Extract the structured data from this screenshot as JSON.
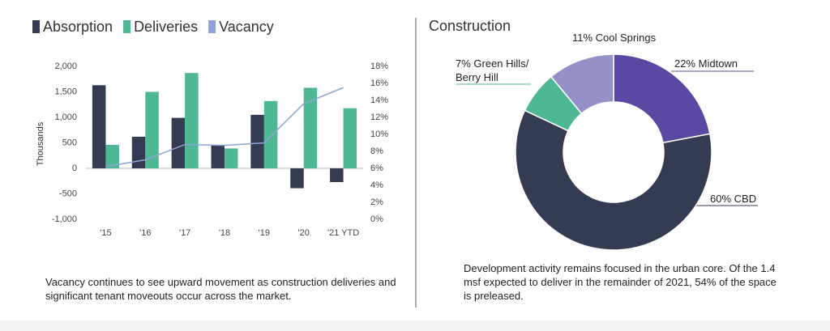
{
  "chart_data": [
    {
      "type": "bar-line",
      "categories": [
        "'15",
        "'16",
        "'17",
        "'18",
        "'19",
        "'20",
        "'21 YTD"
      ],
      "series": [
        {
          "name": "Absorption",
          "color": "#333c52",
          "values": [
            1630,
            620,
            990,
            460,
            1050,
            -390,
            -270
          ]
        },
        {
          "name": "Deliveries",
          "color": "#4db893",
          "values": [
            460,
            1500,
            1870,
            390,
            1320,
            1580,
            1180
          ]
        },
        {
          "name": "Vacancy",
          "color": "#8ea3d6",
          "axis": "y2",
          "values": [
            6.2,
            7.0,
            8.8,
            8.7,
            9.0,
            13.6,
            15.5
          ]
        }
      ],
      "ylabel": "Thousands",
      "ylim": [
        -1000,
        2000
      ],
      "yticks": [
        {
          "value": -1000,
          "label": "-1,000"
        },
        -500,
        0,
        500,
        {
          "value": 1000,
          "label": "1,000"
        },
        {
          "value": 1500,
          "label": "1,500"
        },
        {
          "value": 2000,
          "label": "2,000"
        }
      ],
      "y2lim": [
        0,
        18
      ],
      "y2ticks": [
        {
          "value": 0,
          "label": "0%"
        },
        {
          "value": 2,
          "label": "2%"
        },
        {
          "value": 4,
          "label": "4%"
        },
        {
          "value": 6,
          "label": "6%"
        },
        {
          "value": 8,
          "label": "8%"
        },
        {
          "value": 10,
          "label": "10%"
        },
        {
          "value": 12,
          "label": "12%"
        },
        {
          "value": 14,
          "label": "14%"
        },
        {
          "value": 16,
          "label": "16%"
        },
        {
          "value": 18,
          "label": "18%"
        }
      ],
      "caption": "Vacancy continues to see upward movement as construction deliveries and significant tenant moveouts occur across the market."
    },
    {
      "type": "donut",
      "title": "Construction",
      "labels": [
        "22% Midtown",
        "60% CBD",
        "7% Green Hills/ Berry Hill",
        "11% Cool Springs"
      ],
      "values": [
        22,
        60,
        7,
        11
      ],
      "colors": [
        "#5b48a2",
        "#333c52",
        "#4db893",
        "#9391c7"
      ],
      "caption": "Development activity remains focused in the urban core. Of the 1.4 msf expected to deliver in the remainder of 2021, 54% of the space is preleased."
    }
  ]
}
